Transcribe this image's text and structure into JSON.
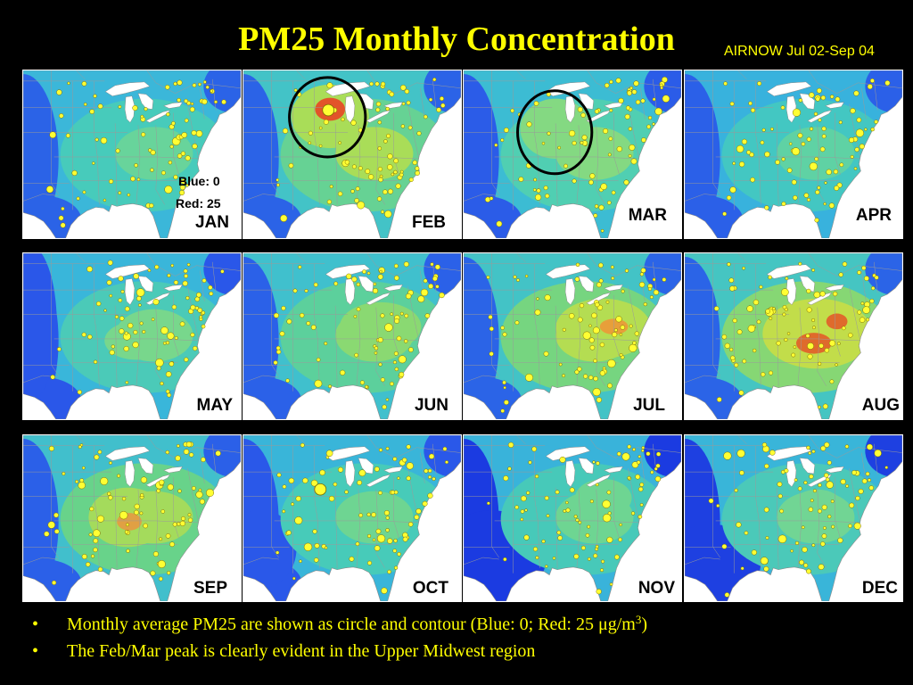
{
  "slide": {
    "title": "PM25 Monthly Concentration",
    "source": "AIRNOW Jul 02-Sep 04",
    "colors": {
      "background": "#000000",
      "text": "#ffff00",
      "map_background": "#ffffff",
      "state_lines": "#9a9a9a",
      "coastline": "#8a8a8a",
      "marker_fill": "#ffff33",
      "marker_stroke": "#7a6a00",
      "highlight_ring": "#000000",
      "month_label": "#000000"
    }
  },
  "legend": {
    "blue": "Blue: 0",
    "red": "Red: 25"
  },
  "panels": [
    {
      "month": "JAN",
      "highlight_ring": false,
      "palette": {
        "base": "#3bb7d9",
        "low": "#2b63e7",
        "mid": "#47cbbb",
        "high": "#68d49b"
      }
    },
    {
      "month": "FEB",
      "highlight_ring": true,
      "palette": {
        "base": "#43c3c7",
        "low": "#2b63e7",
        "mid": "#66d294",
        "high": "#a9dd58",
        "peak": "#e2542a"
      }
    },
    {
      "month": "MAR",
      "highlight_ring": true,
      "palette": {
        "base": "#3cbcd3",
        "low": "#2b5ce8",
        "mid": "#50cfb2",
        "high": "#84d982"
      }
    },
    {
      "month": "APR",
      "highlight_ring": false,
      "palette": {
        "base": "#38b2dd",
        "low": "#2b60e8",
        "mid": "#43c7c2",
        "high": "#5fd2a4"
      }
    },
    {
      "month": "MAY",
      "highlight_ring": false,
      "palette": {
        "base": "#39b6da",
        "low": "#2a57e9",
        "mid": "#4bcab8",
        "high": "#78d78c"
      }
    },
    {
      "month": "JUN",
      "highlight_ring": false,
      "palette": {
        "base": "#40c0cd",
        "low": "#2b61e8",
        "mid": "#5cd09c",
        "high": "#8ad972"
      }
    },
    {
      "month": "JUL",
      "highlight_ring": false,
      "palette": {
        "base": "#43c3c6",
        "low": "#2b64e7",
        "mid": "#76d580",
        "high": "#b4dd52",
        "peak": "#e79f3a"
      }
    },
    {
      "month": "AUG",
      "highlight_ring": false,
      "palette": {
        "base": "#45c5c2",
        "low": "#2b64e7",
        "mid": "#86d774",
        "high": "#c2dd4a",
        "peak": "#df6a2c"
      }
    },
    {
      "month": "SEP",
      "highlight_ring": false,
      "palette": {
        "base": "#41bfcc",
        "low": "#2b60e8",
        "mid": "#68d38a",
        "high": "#a4db5c",
        "peak": "#e0a044"
      }
    },
    {
      "month": "OCT",
      "highlight_ring": false,
      "palette": {
        "base": "#39b5d9",
        "low": "#2a58e9",
        "mid": "#47cbb9",
        "high": "#6ed592"
      }
    },
    {
      "month": "NOV",
      "highlight_ring": false,
      "palette": {
        "base": "#39b3da",
        "low": "#1b3be1",
        "mid": "#47c9b9",
        "high": "#6ed592"
      }
    },
    {
      "month": "DEC",
      "highlight_ring": false,
      "palette": {
        "base": "#39b5d9",
        "low": "#1e40e1",
        "mid": "#4bc9b9",
        "high": "#71d594"
      }
    }
  ],
  "bullet_glyph": "•",
  "bullets": [
    {
      "text": "Monthly average PM25 are shown as circle and contour (Blue: 0; Red: 25 μg/m",
      "sup": "3",
      "after": ")"
    },
    {
      "text": "The Feb/Mar peak is clearly evident in the Upper Midwest region"
    }
  ]
}
